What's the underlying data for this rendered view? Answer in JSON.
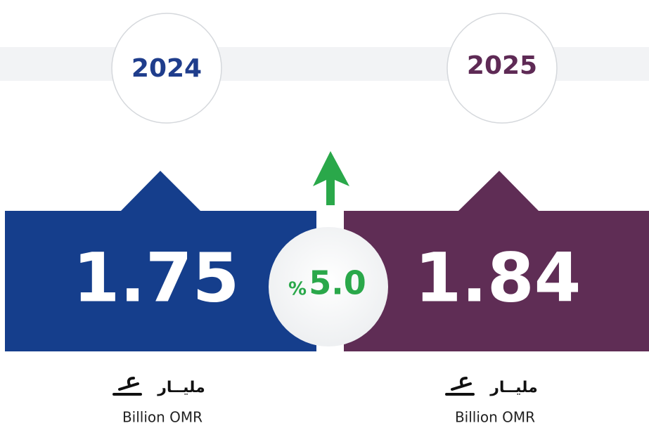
{
  "panels": [
    {
      "year": "2024",
      "value": "1.75",
      "unit_ar": "مليــار",
      "unit_en": "Billion OMR"
    },
    {
      "year": "2025",
      "value": "1.84",
      "unit_ar": "مليــار",
      "unit_en": "Billion OMR"
    }
  ],
  "change": {
    "symbol": "%",
    "value": "5.0"
  }
}
